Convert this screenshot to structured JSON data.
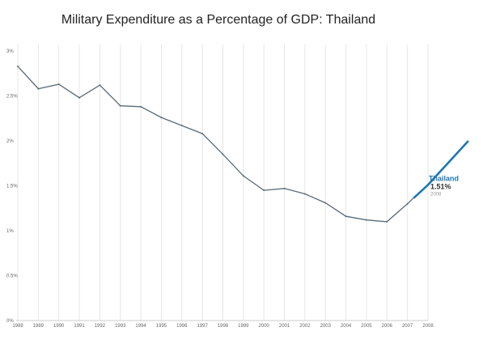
{
  "chart_data": {
    "type": "line",
    "title": "Military Expenditure as a Percentage of GDP: Thailand",
    "xlabel": "",
    "ylabel": "",
    "ylim": [
      0,
      3
    ],
    "y_tick_values": [
      0,
      0.5,
      1,
      1.5,
      2,
      2.5,
      3
    ],
    "y_tick_labels": [
      "0%",
      "0.5%",
      "1%",
      "1.5%",
      "2%",
      "2.5%",
      "3%"
    ],
    "grid": "vertical",
    "categories": [
      "1988",
      "1989",
      "1990",
      "1991",
      "1992",
      "1993",
      "1994",
      "1995",
      "1996",
      "1997",
      "1998",
      "1999",
      "2000",
      "2001",
      "2002",
      "2003",
      "2004",
      "2005",
      "2006",
      "2007",
      "2008"
    ],
    "series": [
      {
        "name": "Thailand",
        "color": "#1f77b4",
        "values": [
          2.83,
          2.58,
          2.63,
          2.48,
          2.62,
          2.39,
          2.38,
          2.26,
          2.17,
          2.08,
          1.85,
          1.61,
          1.45,
          1.47,
          1.41,
          1.31,
          1.16,
          1.12,
          1.1,
          1.3,
          1.51
        ],
        "extension_end": 2.0
      }
    ],
    "end_annotation": {
      "name": "Thailand",
      "value": "1.51%",
      "year": "2008"
    }
  }
}
